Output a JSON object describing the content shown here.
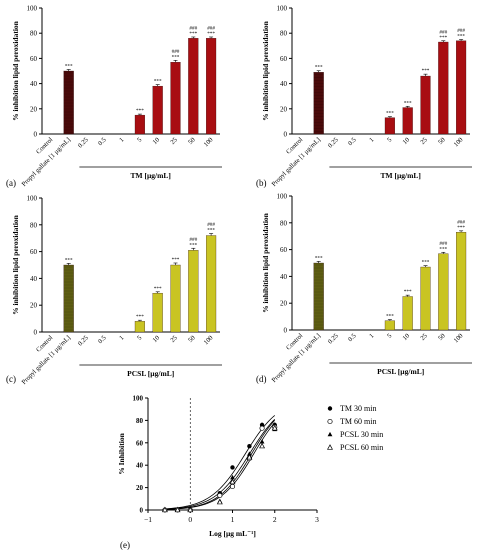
{
  "chart_data": [
    {
      "panel_label": "(a)",
      "type": "bar",
      "ylabel": "% inhibition lipid peroxidation",
      "xlabel": "TM [µg/mL]",
      "ylim": [
        0,
        100
      ],
      "yticks": [
        0,
        20,
        40,
        60,
        80,
        100
      ],
      "categories": [
        "Control",
        "Propyl gallate [1 µg/mL]",
        "0.25",
        "0.5",
        "1",
        "5",
        "10",
        "25",
        "50",
        "100"
      ],
      "values": [
        0,
        50,
        0,
        0,
        0,
        15,
        38,
        57,
        76,
        76
      ],
      "errors": [
        0,
        1.2,
        0,
        0,
        0,
        0.8,
        1.2,
        1.5,
        1,
        1
      ],
      "annotations": [
        "",
        "***",
        "",
        "",
        "",
        "***",
        "***",
        "###\n***",
        "###\n***",
        "###\n***"
      ],
      "colors": {
        "reference": "#4a0a0a",
        "bars": "#a80e12"
      }
    },
    {
      "panel_label": "(b)",
      "type": "bar",
      "ylabel": "% inhibition lipid peroxidation",
      "xlabel": "TM [µg/mL]",
      "ylim": [
        0,
        100
      ],
      "yticks": [
        0,
        20,
        40,
        60,
        80,
        100
      ],
      "categories": [
        "Control",
        "Propyl gallate [1 µg/mL]",
        "0.25",
        "0.5",
        "1",
        "5",
        "10",
        "25",
        "50",
        "100"
      ],
      "values": [
        0,
        49,
        0,
        0,
        0,
        13,
        21,
        46,
        73,
        74
      ],
      "errors": [
        0,
        1.2,
        0,
        0,
        0,
        0.8,
        1,
        1.5,
        1,
        1
      ],
      "annotations": [
        "",
        "***",
        "",
        "",
        "",
        "***",
        "***",
        "***",
        "###\n***",
        "###\n***"
      ],
      "colors": {
        "reference": "#4a0a0a",
        "bars": "#a80e12"
      }
    },
    {
      "panel_label": "(c)",
      "type": "bar",
      "ylabel": "% inhibition lipid peroxidation",
      "xlabel": "PCSL [µg/mL]",
      "ylim": [
        0,
        100
      ],
      "yticks": [
        0,
        20,
        40,
        60,
        80,
        100
      ],
      "categories": [
        "Control",
        "Propyl gallate [1 µg/mL]",
        "0.25",
        "0.5",
        "1",
        "5",
        "10",
        "25",
        "50",
        "100"
      ],
      "values": [
        0,
        50,
        0,
        0,
        0,
        8,
        29,
        50,
        61,
        72
      ],
      "errors": [
        0,
        1.2,
        0,
        0,
        0,
        0.8,
        1,
        1.5,
        1.5,
        1.5
      ],
      "annotations": [
        "",
        "***",
        "",
        "",
        "",
        "***",
        "***",
        "***",
        "###\n***",
        "###\n***"
      ],
      "colors": {
        "reference": "#5e5d12",
        "bars": "#c9c422"
      }
    },
    {
      "panel_label": "(d)",
      "type": "bar",
      "ylabel": "% inhibition lipid peroxidation",
      "xlabel": "PCSL [µg/mL]",
      "ylim": [
        0,
        100
      ],
      "yticks": [
        0,
        20,
        40,
        60,
        80,
        100
      ],
      "categories": [
        "Control",
        "Propyl gallate [1 µg/mL]",
        "0.25",
        "0.5",
        "1",
        "5",
        "10",
        "25",
        "50",
        "100"
      ],
      "values": [
        0,
        50,
        0,
        0,
        0,
        7,
        25,
        47,
        57,
        73
      ],
      "errors": [
        0,
        1.2,
        0,
        0,
        0,
        0.8,
        1,
        1,
        1,
        1
      ],
      "annotations": [
        "",
        "***",
        "",
        "",
        "",
        "***",
        "***",
        "***",
        "###\n***",
        "###\n***"
      ],
      "colors": {
        "reference": "#5e5d12",
        "bars": "#c9c422"
      }
    },
    {
      "panel_label": "(e)",
      "type": "scatter",
      "ylabel": "% Inhibition",
      "xlabel": "Log [µg mL⁻¹]",
      "xlim": [
        -1,
        3
      ],
      "ylim": [
        0,
        100
      ],
      "xticks": [
        -1,
        0,
        1,
        2,
        3
      ],
      "yticks": [
        0,
        20,
        40,
        60,
        80,
        100
      ],
      "legend_position": "top-right",
      "series": [
        {
          "name": "TM  30 min",
          "marker": "filled-circle",
          "x": [
            -0.6,
            -0.3,
            0,
            0.7,
            1,
            1.4,
            1.7,
            2
          ],
          "y": [
            0,
            0,
            0,
            15,
            38,
            57,
            76,
            76
          ]
        },
        {
          "name": "TM  60 min",
          "marker": "open-circle",
          "x": [
            -0.6,
            -0.3,
            0,
            0.7,
            1,
            1.4,
            1.7,
            2
          ],
          "y": [
            0,
            0,
            0,
            13,
            21,
            46,
            73,
            74
          ]
        },
        {
          "name": "PCSL 30 min",
          "marker": "filled-triangle",
          "x": [
            -0.6,
            -0.3,
            0,
            0.7,
            1,
            1.4,
            1.7,
            2
          ],
          "y": [
            0,
            0,
            0,
            8,
            29,
            50,
            61,
            72
          ]
        },
        {
          "name": "PCSL 60 min",
          "marker": "open-triangle",
          "x": [
            -0.6,
            -0.3,
            0,
            0.7,
            1,
            1.4,
            1.7,
            2
          ],
          "y": [
            0,
            0,
            0,
            7,
            25,
            47,
            57,
            73
          ]
        }
      ],
      "fits": [
        {
          "ec50_log": 1.3,
          "hill": 1.05,
          "top": 100
        },
        {
          "ec50_log": 1.4,
          "hill": 1.05,
          "top": 100
        },
        {
          "ec50_log": 1.45,
          "hill": 1.1,
          "top": 100
        },
        {
          "ec50_log": 1.5,
          "hill": 1.1,
          "top": 100
        }
      ]
    }
  ]
}
